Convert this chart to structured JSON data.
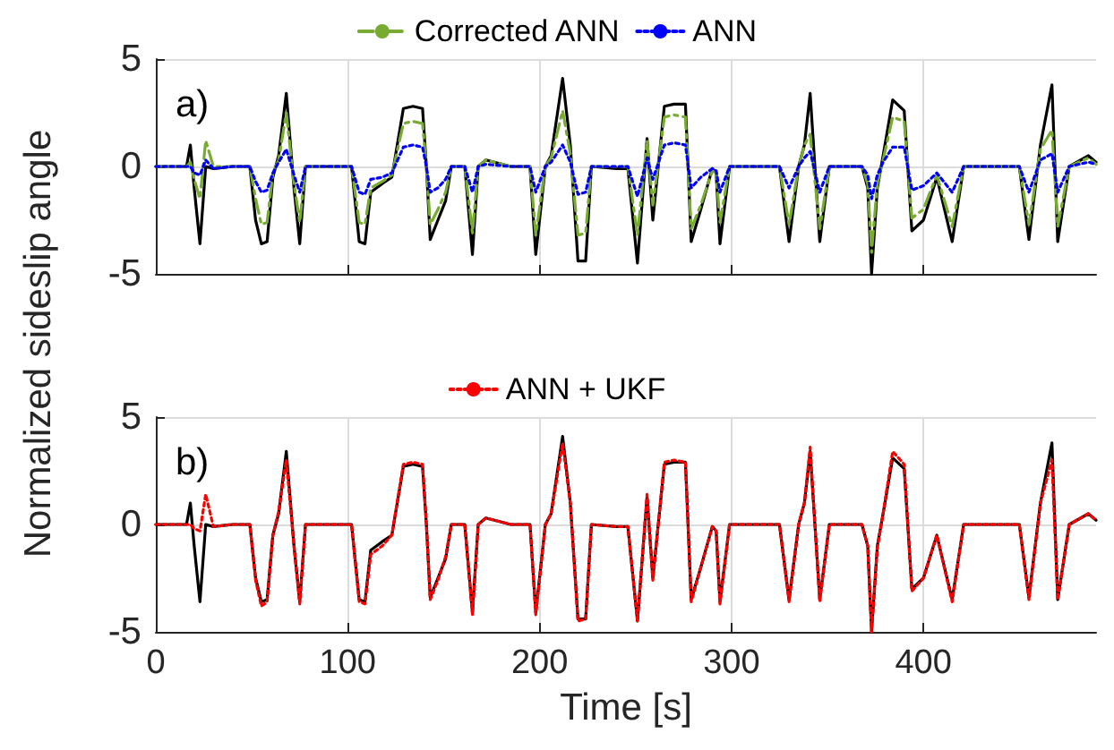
{
  "chart_data": [
    {
      "type": "line",
      "title": "a)",
      "ylabel": "Normalized sideslip angle",
      "xlim": [
        0,
        490
      ],
      "xticks": [
        0,
        100,
        200,
        300,
        400
      ],
      "ylim": [
        -5,
        5
      ],
      "yticks": [
        -5,
        0,
        5
      ],
      "grid": true,
      "legend": "top",
      "tick_labels": "y",
      "marker": "none",
      "x": [
        0,
        16,
        18,
        20,
        23,
        26,
        30,
        40,
        49,
        52,
        55,
        58,
        61,
        64,
        68,
        72,
        75,
        78,
        85,
        95,
        102,
        106,
        109,
        112,
        118,
        123,
        129,
        134,
        139,
        141,
        143,
        147,
        151,
        154,
        161,
        165,
        168,
        172,
        185,
        195,
        198,
        203,
        206,
        212,
        216,
        220,
        224,
        227,
        240,
        246,
        251,
        256,
        259,
        265,
        270,
        276,
        279,
        284,
        290,
        292,
        294,
        299,
        310,
        325,
        330,
        335,
        338,
        341,
        346,
        351,
        360,
        368,
        371,
        373,
        376,
        379,
        384,
        390,
        394,
        400,
        407,
        415,
        421,
        435,
        450,
        455,
        461,
        467,
        470,
        476,
        486,
        490
      ],
      "series": [
        {
          "color": "#000000",
          "line_style": "solid",
          "values": [
            0,
            0,
            1.0,
            -1.0,
            -3.6,
            0,
            -0.1,
            0,
            0,
            -2.5,
            -3.6,
            -3.5,
            -0.5,
            0.5,
            3.4,
            -1,
            -3.6,
            0,
            0,
            0,
            0,
            -3.5,
            -3.6,
            -1.2,
            -0.8,
            -0.5,
            2.7,
            2.8,
            2.7,
            0,
            -3.4,
            -2.5,
            -1.6,
            0,
            0,
            -4.1,
            0,
            0.3,
            0,
            0,
            -4.1,
            0,
            0.5,
            4.1,
            1,
            -4.4,
            -4.4,
            0,
            -0.1,
            -0.1,
            -4.5,
            1.3,
            -2.5,
            2.8,
            2.9,
            2.9,
            -3.5,
            -2,
            -0.1,
            -0.3,
            -3.6,
            0,
            0,
            0,
            -3.5,
            0,
            1,
            3.4,
            -3.5,
            0,
            0,
            0,
            -1,
            -5,
            -1,
            0.5,
            3.1,
            2.6,
            -3,
            -2.5,
            -0.5,
            -3.5,
            0,
            0,
            0,
            -3.4,
            1,
            3.8,
            -3.5,
            0,
            0.5,
            0.2
          ]
        },
        {
          "name": "Corrected ANN",
          "color": "#77ac30",
          "line_style": "dashed",
          "values": [
            0,
            0,
            0.2,
            -0.6,
            -1.5,
            1.2,
            0,
            0,
            0,
            -1.5,
            -2.7,
            -2.6,
            -0.3,
            0.3,
            2.5,
            -0.8,
            -2.6,
            0,
            0,
            0,
            0,
            -2.6,
            -2.7,
            -1.0,
            -0.7,
            -0.4,
            2.0,
            2.1,
            2.0,
            0,
            -2.7,
            -2.0,
            -1.2,
            0,
            0,
            -3.1,
            0,
            0.3,
            0,
            0,
            -3.2,
            0,
            0.4,
            2.6,
            0.6,
            -3.2,
            -3.1,
            0,
            0,
            0,
            -3.2,
            1.2,
            -1.8,
            2.3,
            2.4,
            2.3,
            -2.9,
            -1.8,
            -0.2,
            -0.3,
            -2.6,
            0,
            0,
            0,
            -2.7,
            0,
            1.0,
            1.5,
            -2.9,
            0,
            0,
            0,
            -0.8,
            -4.0,
            -0.8,
            0.3,
            2.3,
            2.1,
            -2.4,
            -2.0,
            -0.4,
            -2.8,
            0,
            0,
            0,
            -2.7,
            0.8,
            1.7,
            -2.8,
            0,
            0.4,
            0.1
          ]
        },
        {
          "name": "ANN",
          "color": "#0000ff",
          "line_style": "dotted",
          "values": [
            0,
            0,
            0,
            -0.3,
            -0.4,
            0.3,
            -0.1,
            0,
            0,
            -0.7,
            -1.2,
            -1.1,
            -0.3,
            0.2,
            0.8,
            -0.4,
            -1.2,
            0,
            0,
            0,
            0,
            -1.2,
            -1.3,
            -0.6,
            -0.5,
            -0.3,
            0.9,
            1.0,
            0.9,
            0,
            -1.2,
            -1.0,
            -0.6,
            0,
            0,
            -1.2,
            0,
            0.1,
            0,
            0,
            -1.2,
            0,
            0.2,
            1.0,
            0.2,
            -1.3,
            -1.2,
            0,
            0,
            0,
            -1.4,
            0.4,
            -0.6,
            1.0,
            1.1,
            1.0,
            -1.0,
            -0.5,
            -0.1,
            -0.2,
            -1.2,
            0,
            0,
            0,
            -1.0,
            0,
            0.4,
            0.7,
            -1.2,
            0,
            0,
            0,
            -0.4,
            -1.5,
            -0.4,
            0.2,
            0.9,
            0.9,
            -1.1,
            -0.9,
            -0.3,
            -1.2,
            0,
            0,
            0,
            -1.2,
            0.3,
            0.6,
            -1.2,
            0,
            0.2,
            0.1
          ]
        }
      ]
    },
    {
      "type": "line",
      "title": "b)",
      "xlabel": "Time [s]",
      "xlim": [
        0,
        490
      ],
      "xticks": [
        0,
        100,
        200,
        300,
        400
      ],
      "ylim": [
        -5,
        5
      ],
      "yticks": [
        -5,
        0,
        5
      ],
      "grid": true,
      "legend": "top",
      "marker": "none",
      "x": [
        0,
        16,
        18,
        20,
        23,
        26,
        30,
        40,
        49,
        52,
        55,
        58,
        61,
        64,
        68,
        72,
        75,
        78,
        85,
        95,
        102,
        106,
        109,
        112,
        118,
        123,
        129,
        134,
        139,
        141,
        143,
        147,
        151,
        154,
        161,
        165,
        168,
        172,
        185,
        195,
        198,
        203,
        206,
        212,
        216,
        220,
        224,
        227,
        240,
        246,
        251,
        256,
        259,
        265,
        270,
        276,
        279,
        284,
        290,
        292,
        294,
        299,
        310,
        325,
        330,
        335,
        338,
        341,
        346,
        351,
        360,
        368,
        371,
        373,
        376,
        379,
        384,
        390,
        394,
        400,
        407,
        415,
        421,
        435,
        450,
        455,
        461,
        467,
        470,
        476,
        486,
        490
      ],
      "series": [
        {
          "color": "#000000",
          "line_style": "solid",
          "values": [
            0,
            0,
            1.0,
            -1.0,
            -3.6,
            0,
            -0.1,
            0,
            0,
            -2.5,
            -3.6,
            -3.5,
            -0.5,
            0.5,
            3.4,
            -1,
            -3.6,
            0,
            0,
            0,
            0,
            -3.5,
            -3.6,
            -1.2,
            -0.8,
            -0.5,
            2.7,
            2.8,
            2.7,
            0,
            -3.4,
            -2.5,
            -1.6,
            0,
            0,
            -4.1,
            0,
            0.3,
            0,
            0,
            -4.1,
            0,
            0.5,
            4.1,
            1,
            -4.4,
            -4.4,
            0,
            -0.1,
            -0.1,
            -4.5,
            1.3,
            -2.5,
            2.8,
            2.9,
            2.9,
            -3.5,
            -2,
            -0.1,
            -0.3,
            -3.6,
            0,
            0,
            0,
            -3.5,
            0,
            1,
            3.4,
            -3.5,
            0,
            0,
            0,
            -1,
            -5,
            -1,
            0.5,
            3.1,
            2.6,
            -3,
            -2.5,
            -0.5,
            -3.5,
            0,
            0,
            0,
            -3.4,
            1,
            3.8,
            -3.5,
            0,
            0.5,
            0.2
          ]
        },
        {
          "name": "ANN + UKF",
          "color": "#ff0000",
          "line_style": "dotted",
          "values": [
            0,
            0,
            0,
            -0.2,
            -0.3,
            1.4,
            -0.1,
            0,
            0,
            -2.6,
            -3.8,
            -3.6,
            -0.5,
            0.6,
            3.0,
            -1,
            -3.7,
            0,
            0,
            0,
            0,
            -3.6,
            -3.7,
            -1.4,
            -1.0,
            -0.5,
            2.8,
            2.9,
            2.8,
            0,
            -3.5,
            -2.6,
            -1.5,
            0,
            0,
            -4.2,
            0,
            0.3,
            0,
            0,
            -4.2,
            0,
            0.5,
            3.8,
            1,
            -4.5,
            -4.4,
            0,
            -0.1,
            -0.1,
            -4.5,
            1.4,
            -2.6,
            2.9,
            3.0,
            2.9,
            -3.6,
            -2,
            -0.1,
            -0.3,
            -3.7,
            0,
            0,
            0,
            -3.6,
            0,
            1,
            3.6,
            -3.6,
            0,
            0,
            0,
            -1,
            -5,
            -1.1,
            0.5,
            3.4,
            2.8,
            -3.1,
            -2.5,
            -0.5,
            -3.6,
            0,
            0,
            0,
            -3.5,
            1,
            3.0,
            -3.5,
            0,
            0.5,
            0.2
          ]
        }
      ]
    }
  ]
}
